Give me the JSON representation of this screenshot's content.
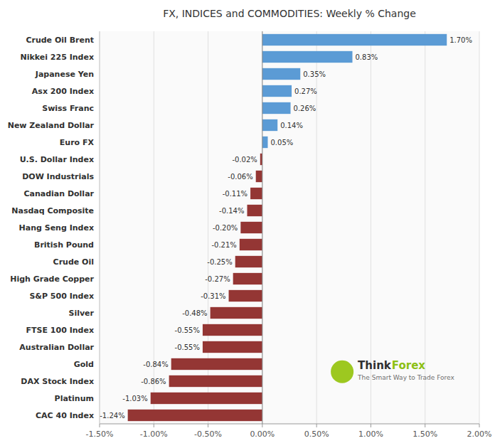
{
  "chart_data": {
    "type": "bar",
    "orientation": "horizontal",
    "title": "FX, INDICES and COMMODITIES: Weekly % Change",
    "categories": [
      "Crude Oil Brent",
      "Nikkei 225 Index",
      "Japanese Yen",
      "Asx 200 Index",
      "Swiss Franc",
      "New Zealand Dollar",
      "Euro FX",
      "U.S. Dollar Index",
      "DOW Industrials",
      "Canadian Dollar",
      "Nasdaq Composite",
      "Hang Seng Index",
      "British Pound",
      "Crude Oil",
      "High Grade Copper",
      "S&P 500 Index",
      "Silver",
      "FTSE 100 Index",
      "Australian Dollar",
      "Gold",
      "DAX Stock Index",
      "Platinum",
      "CAC 40 Index"
    ],
    "values": [
      1.7,
      0.83,
      0.35,
      0.27,
      0.26,
      0.14,
      0.05,
      -0.02,
      -0.06,
      -0.11,
      -0.14,
      -0.2,
      -0.21,
      -0.25,
      -0.27,
      -0.31,
      -0.48,
      -0.55,
      -0.55,
      -0.84,
      -0.86,
      -1.03,
      -1.24
    ],
    "value_labels": [
      "1.70%",
      "0.83%",
      "0.35%",
      "0.27%",
      "0.26%",
      "0.14%",
      "0.05%",
      "-0.02%",
      "-0.06%",
      "-0.11%",
      "-0.14%",
      "-0.20%",
      "-0.21%",
      "-0.25%",
      "-0.27%",
      "-0.31%",
      "-0.48%",
      "-0.55%",
      "-0.55%",
      "-0.84%",
      "-0.86%",
      "-1.03%",
      "-1.24%"
    ],
    "colors": [
      "#5B9BD5",
      "#5B9BD5",
      "#5B9BD5",
      "#5B9BD5",
      "#5B9BD5",
      "#5B9BD5",
      "#5B9BD5",
      "#943634",
      "#943634",
      "#943634",
      "#943634",
      "#943634",
      "#943634",
      "#943634",
      "#943634",
      "#943634",
      "#943634",
      "#943634",
      "#943634",
      "#943634",
      "#943634",
      "#943634",
      "#943634"
    ],
    "xlim": [
      -1.5,
      2.0
    ],
    "xticks": [
      {
        "value": -1.5,
        "label": "-1.50%"
      },
      {
        "value": -1.0,
        "label": "-1.00%"
      },
      {
        "value": -0.5,
        "label": "-0.50%"
      },
      {
        "value": 0.0,
        "label": "0.00%"
      },
      {
        "value": 0.5,
        "label": "0.50%"
      },
      {
        "value": 1.0,
        "label": "1.00%"
      },
      {
        "value": 1.5,
        "label": "1.50%"
      },
      {
        "value": 2.0,
        "label": "2.00%"
      }
    ],
    "grid": true,
    "data_labels": true,
    "annotations": [
      "Think",
      "Forex",
      "The Smart Way to Trade Forex"
    ]
  }
}
